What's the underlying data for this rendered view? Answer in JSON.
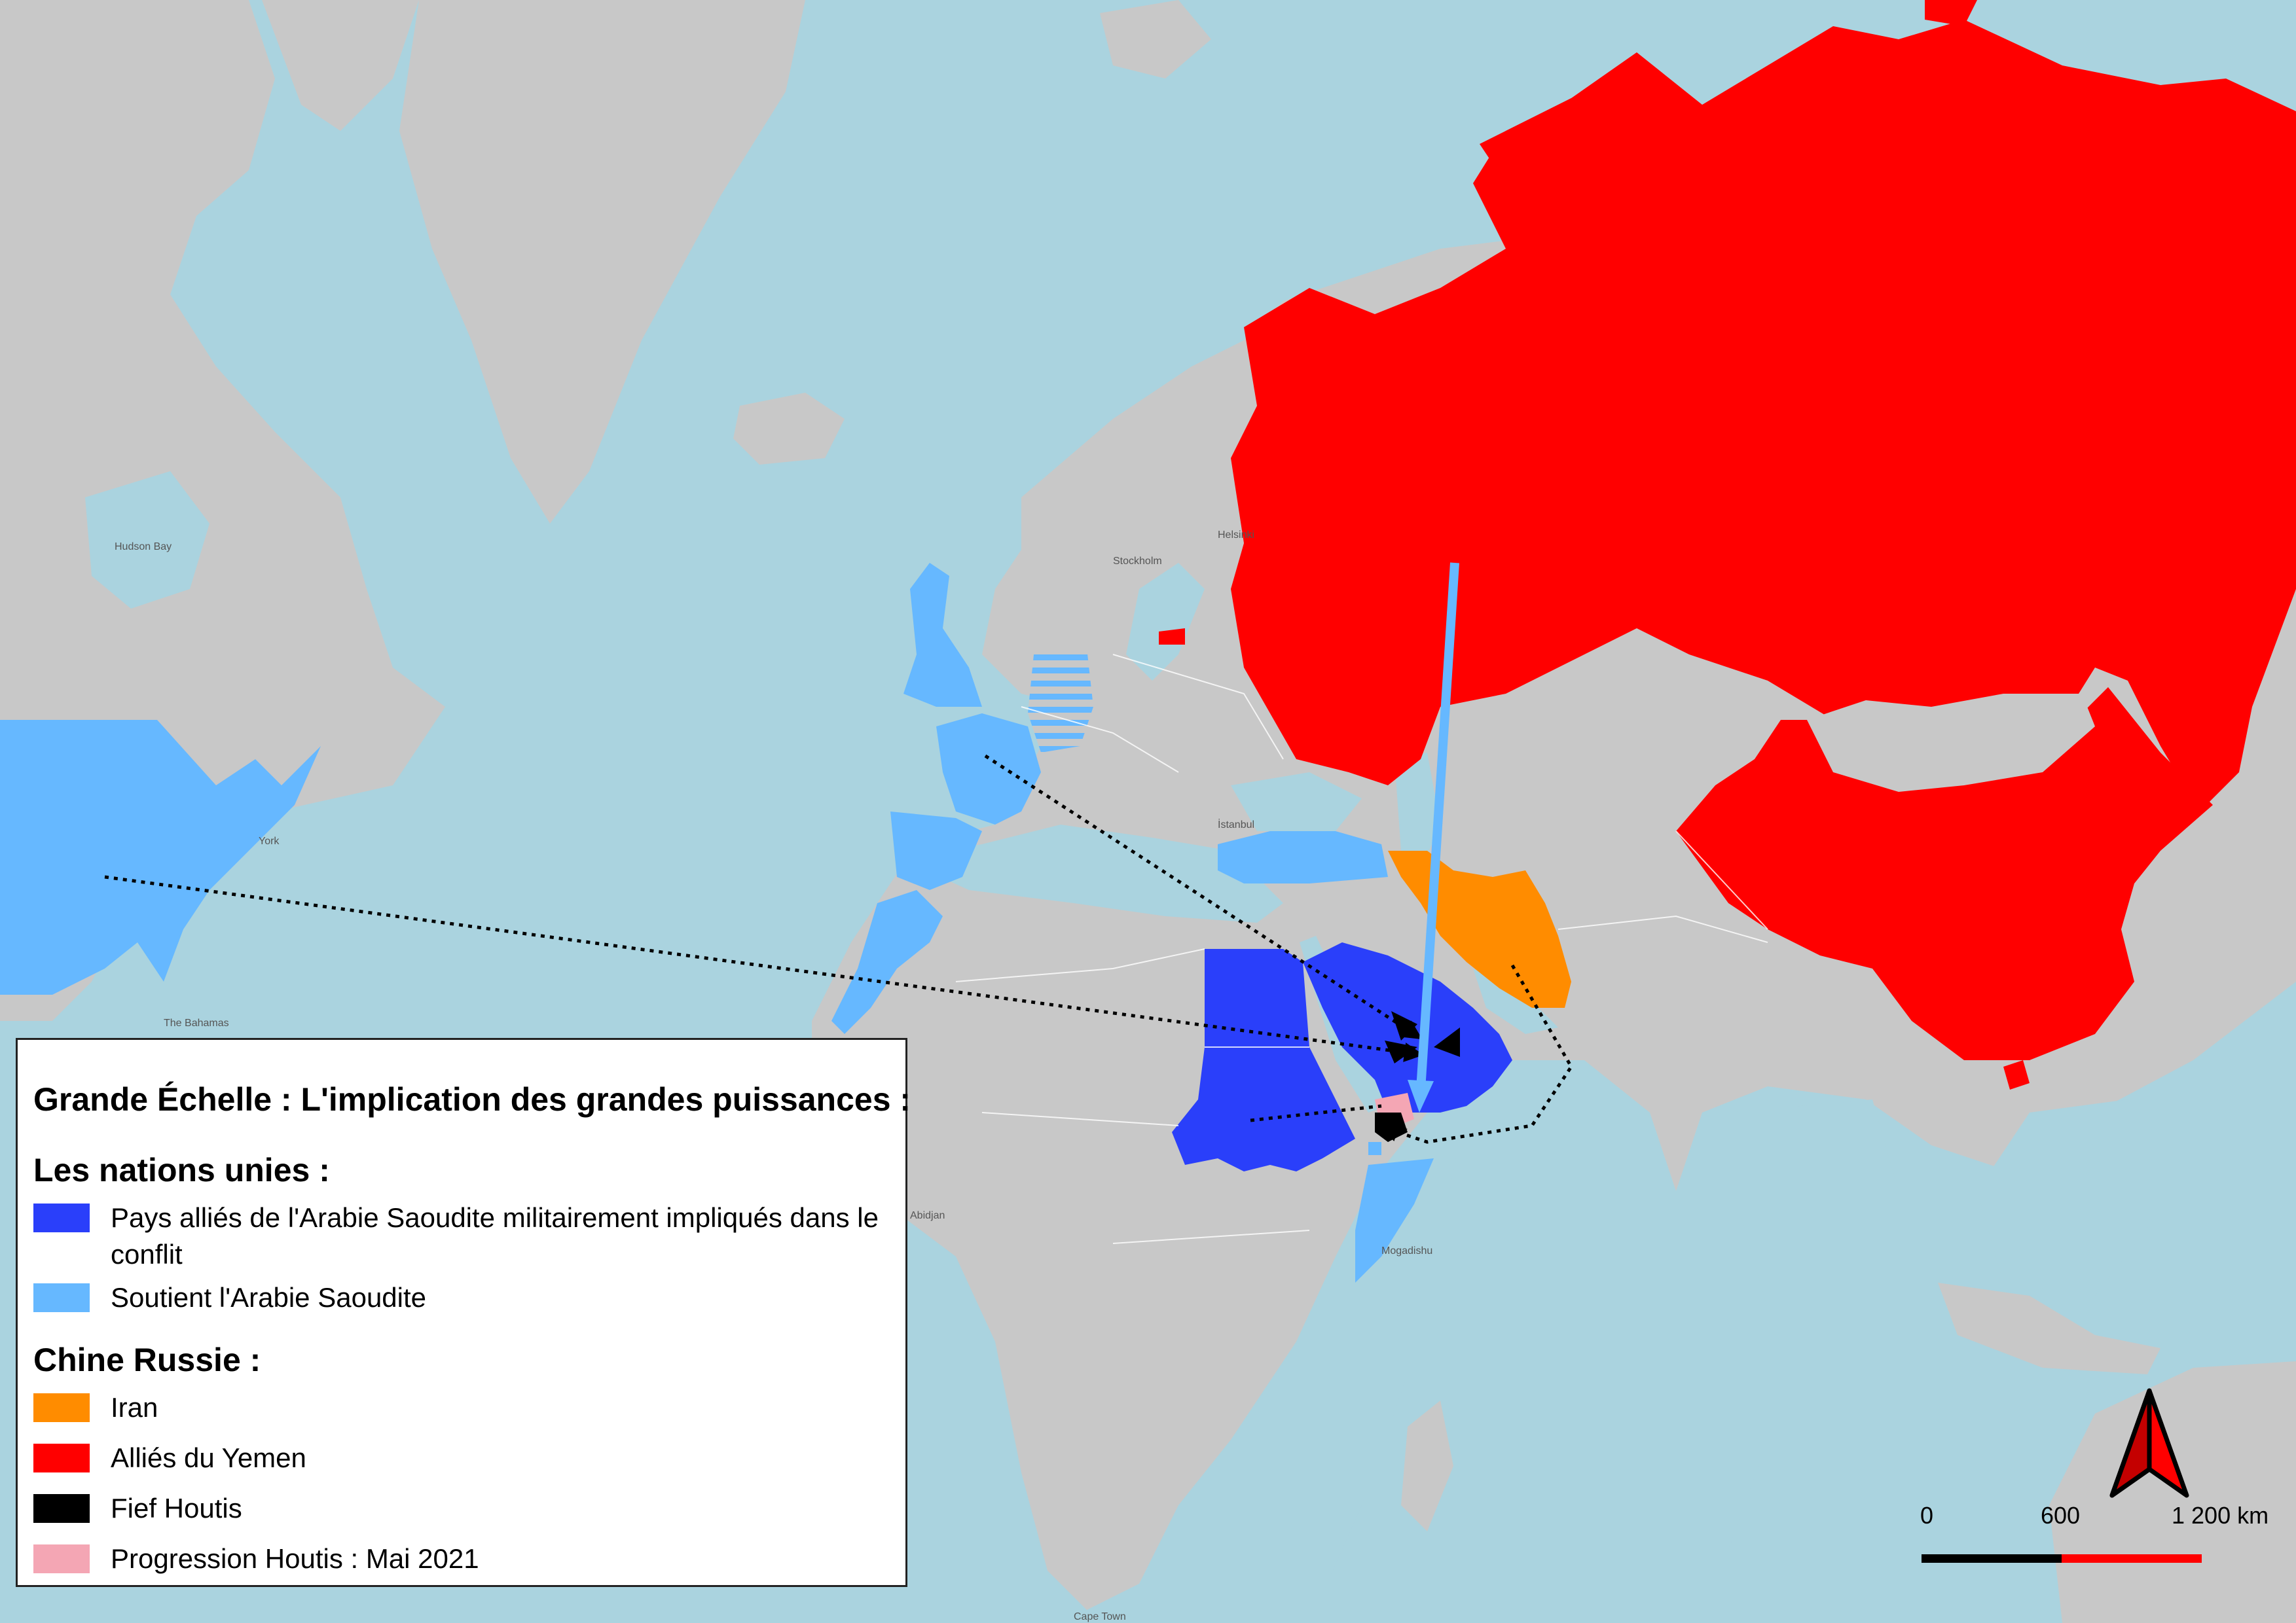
{
  "legend": {
    "title": "Grande Échelle : L'implication des grandes puissances :",
    "section_un": "Les nations unies :",
    "item_allies": "Pays alliés de l'Arabie Saoudite militairement impliqués dans le conflit",
    "item_support": "Soutient l'Arabie Saoudite",
    "section_cr": "Chine Russie :",
    "item_iran": "Iran",
    "item_yemen_allies": "Alliés du Yemen",
    "item_fief": "Fief Houtis",
    "item_progress": "Progression Houtis : Mai 2021"
  },
  "colors": {
    "ocean": "#aad3df",
    "land": "#c8c8c8",
    "allies_military": "#2a3ffa",
    "support": "#66b8ff",
    "iran": "#ff8c00",
    "yemen_allies": "#ff0000",
    "houthi_fief": "#000000",
    "houthi_progress": "#f4a6b4"
  },
  "scale": {
    "labels": [
      "0",
      "600",
      "1 200 km"
    ],
    "unit": "km"
  },
  "map_labels": {
    "hudson_bay": "Hudson Bay",
    "helsinki": "Helsinki",
    "stockholm": "Stockholm",
    "new_york": "York",
    "istanbul": "İstanbul",
    "bahamas": "The Bahamas",
    "abidjan": "Abidjan",
    "mogadishu": "Mogadishu",
    "cape_town": "Cape Town"
  },
  "icons": {
    "north_arrow": "north-arrow-icon"
  }
}
